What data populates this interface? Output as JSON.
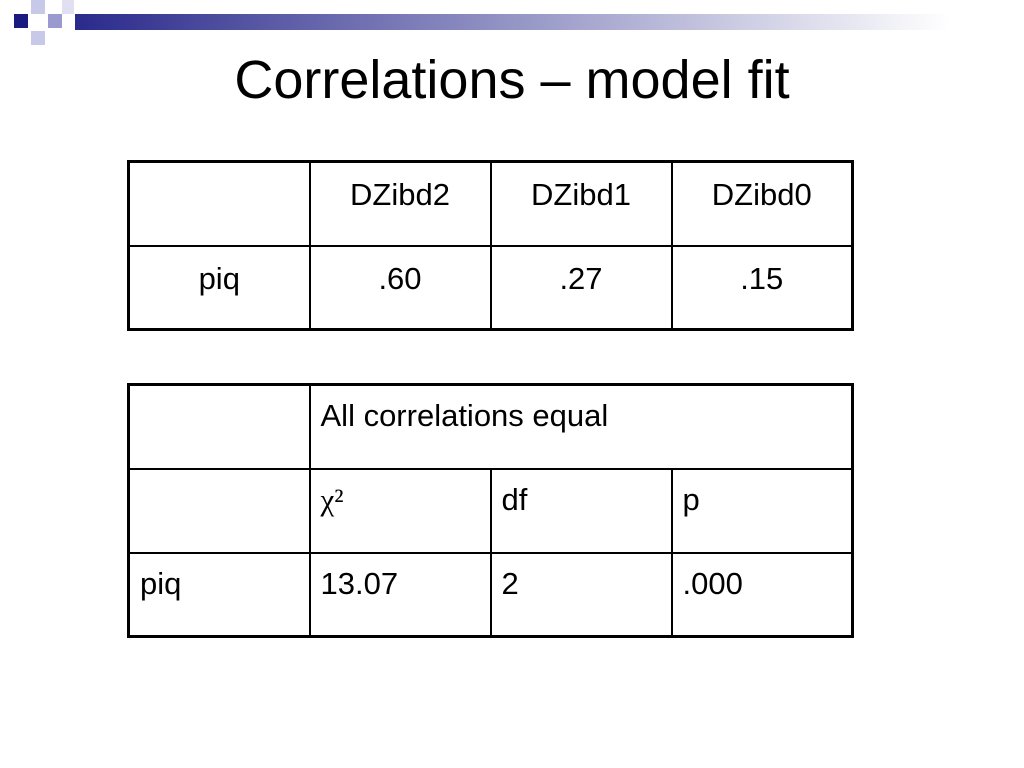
{
  "title": "Correlations – model fit",
  "table1": {
    "columns": [
      "DZibd2",
      "DZibd1",
      "DZibd0"
    ],
    "rows": [
      {
        "label": "piq",
        "values": [
          ".60",
          ".27",
          ".15"
        ]
      }
    ]
  },
  "table2": {
    "heading": "All correlations equal",
    "columns": [
      "χ²",
      "df",
      "p"
    ],
    "rows": [
      {
        "label": "piq",
        "values": [
          "13.07",
          "2",
          ".000"
        ]
      }
    ]
  }
}
